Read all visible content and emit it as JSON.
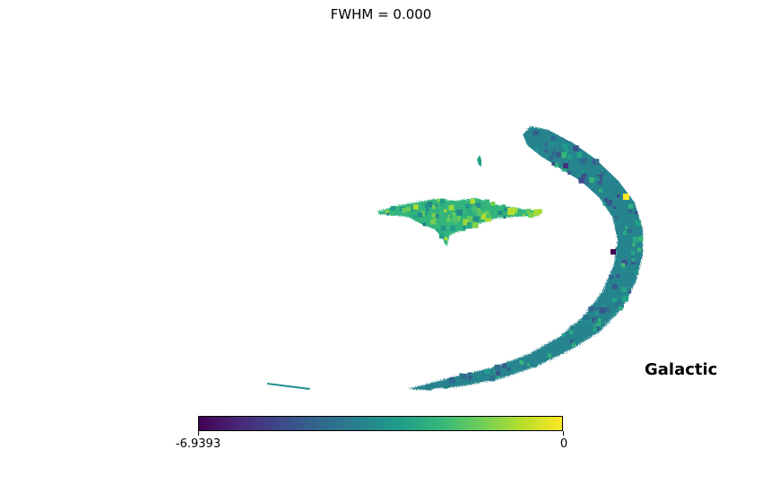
{
  "chart_data": {
    "type": "heatmap",
    "title": "FWHM = 0.000",
    "projection": "mollweide",
    "coord": "Galactic",
    "colormap": "viridis",
    "colormap_stops": [
      "#440154",
      "#482878",
      "#3e4989",
      "#31688e",
      "#26828e",
      "#1f9e89",
      "#35b779",
      "#6ece58",
      "#b5de2b",
      "#fde725"
    ],
    "colorbar": {
      "min": -6.9393,
      "max": 0,
      "tick_labels": [
        "-6.9393",
        "0"
      ]
    },
    "regions": [
      {
        "name": "crescent",
        "typical_value": -3.8
      },
      {
        "name": "central filament",
        "typical_value": -2.4
      },
      {
        "name": "small patch",
        "typical_value": -3.0
      },
      {
        "name": "lower-left trace",
        "typical_value": -3.5
      }
    ],
    "extremes": {
      "max_near": 0,
      "min_near": -6.9393
    }
  }
}
